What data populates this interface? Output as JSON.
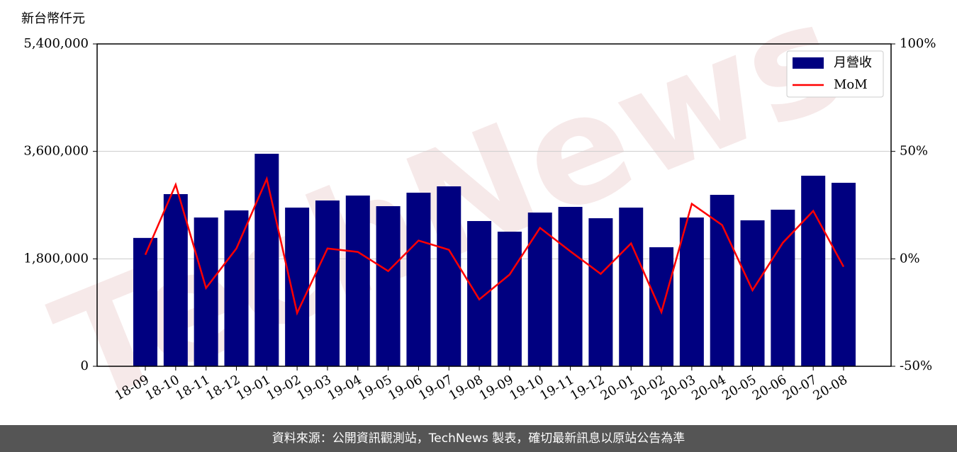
{
  "chart_data": {
    "type": "bar",
    "y_axis_label": "新台幣仟元",
    "watermark": "TechNews",
    "footer": "資料來源：公開資訊觀測站，TechNews 製表，確切最新訊息以原站公告為準",
    "categories": [
      "18-09",
      "18-10",
      "18-11",
      "18-12",
      "19-01",
      "19-02",
      "19-03",
      "19-04",
      "19-05",
      "19-06",
      "19-07",
      "19-08",
      "19-09",
      "19-10",
      "19-11",
      "19-12",
      "20-01",
      "20-02",
      "20-03",
      "20-04",
      "20-05",
      "20-06",
      "20-07",
      "20-08"
    ],
    "series": [
      {
        "name": "月營收",
        "type": "bar",
        "color": "#000080",
        "values": [
          2150000,
          2884000,
          2492000,
          2611000,
          3560000,
          2658000,
          2777000,
          2860000,
          2682000,
          2908000,
          3014000,
          2433000,
          2255000,
          2575000,
          2670000,
          2480000,
          2658000,
          1994000,
          2492000,
          2872000,
          2445000,
          2623000,
          3192000,
          3074000
        ]
      },
      {
        "name": "MoM",
        "type": "line",
        "axis": "y2",
        "color": "#ff0000",
        "values": [
          1.9,
          34.5,
          -13.6,
          4.8,
          37.2,
          -25.2,
          4.8,
          3.2,
          -5.7,
          8.5,
          4.2,
          -18.9,
          -7.3,
          14.4,
          3.5,
          -7.0,
          7.2,
          -24.8,
          25.6,
          15.7,
          -14.6,
          7.5,
          22.3,
          -3.7
        ]
      }
    ],
    "ylim": [
      0,
      5400000
    ],
    "yticks": [
      0,
      {
        "value": 1800000,
        "label": "1,800,000"
      },
      {
        "value": 3600000,
        "label": "3,600,000"
      },
      {
        "value": 5400000,
        "label": "5,400,000"
      }
    ],
    "y2lim": [
      -50,
      100
    ],
    "y2ticks": [
      {
        "value": -50,
        "label": "-50%"
      },
      {
        "value": 0,
        "label": "0%"
      },
      {
        "value": 50,
        "label": "50%"
      },
      {
        "value": 100,
        "label": "100%"
      }
    ],
    "grid": true,
    "legend": "upper right"
  }
}
